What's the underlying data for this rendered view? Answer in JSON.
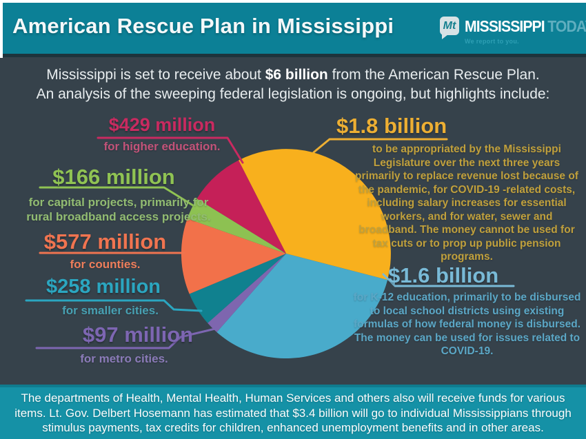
{
  "header": {
    "title": "American Rescue Plan in Mississippi",
    "logo": {
      "mark": "Mt",
      "name": "MISSISSIPPI",
      "name2": "TODAY",
      "tagline": "We report to you."
    }
  },
  "intro": {
    "line1_pre": "Mississippi is set to receive about ",
    "line1_bold": "$6 billion",
    "line1_post": " from the American Rescue Plan.",
    "line2": "An analysis of the sweeping federal legislation is ongoing, but highlights include:"
  },
  "chart_data": {
    "type": "pie",
    "title": "American Rescue Plan funds in Mississippi",
    "unit": "USD millions",
    "start_angle_deg": -27,
    "clockwise": true,
    "legend_position": "callouts",
    "slices": [
      {
        "label": "$1.8 billion",
        "value": 1800,
        "color": "#F8B01D",
        "label_color": "#EDAF33",
        "text_color": "#C0A03C",
        "description": "to be appropriated by the Mississippi Legislature over the next three years primarily to replace revenue lost because of the pandemic, for COVID-19 -related costs, including salary increases for essential workers, and for water, sewer and broadband. The money cannot be used for tax cuts or to prop up public pension programs."
      },
      {
        "label": "$1.6 billion",
        "value": 1600,
        "color": "#49ABCB",
        "label_color": "#79BAD7",
        "text_color": "#5BA7C6",
        "description": "for K-12 education, primarily to be disbursed to local school districts using existing formulas of how federal money is disbursed. The money can be used for issues related to COVID-19."
      },
      {
        "label": "$97 million",
        "value": 97,
        "color": "#7E66AF",
        "label_color": "#7D66B2",
        "text_color": "#8B7BB8",
        "description": "for metro cities."
      },
      {
        "label": "$258 million",
        "value": 258,
        "color": "#10818F",
        "label_color": "#2BA6C0",
        "text_color": "#47A0B2",
        "description": "for smaller cities."
      },
      {
        "label": "$577 million",
        "value": 577,
        "color": "#F2714A",
        "label_color": "#F07450",
        "text_color": "#EE7E5B",
        "description": "for counties."
      },
      {
        "label": "$166 million",
        "value": 166,
        "color": "#8DC152",
        "label_color": "#90C353",
        "text_color": "#92BC72",
        "description": "for capital projects, primarily for rural broadband access projects."
      },
      {
        "label": "$429 million",
        "value": 429,
        "color": "#C52058",
        "label_color": "#C92A60",
        "text_color": "#C25379",
        "description": "for higher education."
      }
    ]
  },
  "footer": {
    "text": "The departments of Health, Mental Health, Human Services and others also will receive funds for various items. Lt. Gov. Delbert Hosemann has estimated that $3.4 billion will go to individual Mississippians through stimulus payments, tax credits for children, enhanced unemployment benefits and in other areas."
  }
}
